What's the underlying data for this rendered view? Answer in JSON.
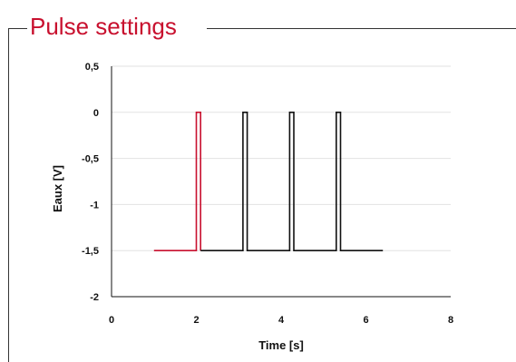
{
  "panel": {
    "title": "Pulse settings",
    "accent_color": "#c8102e"
  },
  "chart_data": {
    "type": "line",
    "title": "",
    "xlabel": "Time [s]",
    "ylabel": "Eaux [V]",
    "xlim": [
      0,
      8
    ],
    "ylim": [
      -2,
      0.5
    ],
    "x_ticks": [
      0,
      2,
      4,
      6,
      8
    ],
    "x_tick_labels": [
      "0",
      "2",
      "4",
      "6",
      "8"
    ],
    "y_ticks": [
      0.5,
      0,
      -0.5,
      -1,
      -1.5,
      -2
    ],
    "y_tick_labels": [
      "0,5",
      "0",
      "-0,5",
      "-1",
      "-1,5",
      "-2"
    ],
    "grid": true,
    "legend": "none",
    "series": [
      {
        "color": "#c8102e",
        "x": [
          1.0,
          2.0,
          2.0,
          2.1,
          2.1
        ],
        "y": [
          -1.5,
          -1.5,
          0,
          0,
          -1.5
        ]
      },
      {
        "color": "#111111",
        "x": [
          2.1,
          3.1,
          3.1,
          3.2,
          3.2,
          4.2,
          4.2,
          4.3,
          4.3,
          5.3,
          5.3,
          5.4,
          5.4,
          6.4
        ],
        "y": [
          -1.5,
          -1.5,
          0,
          0,
          -1.5,
          -1.5,
          0,
          0,
          -1.5,
          -1.5,
          0,
          0,
          -1.5,
          -1.5
        ]
      }
    ]
  }
}
